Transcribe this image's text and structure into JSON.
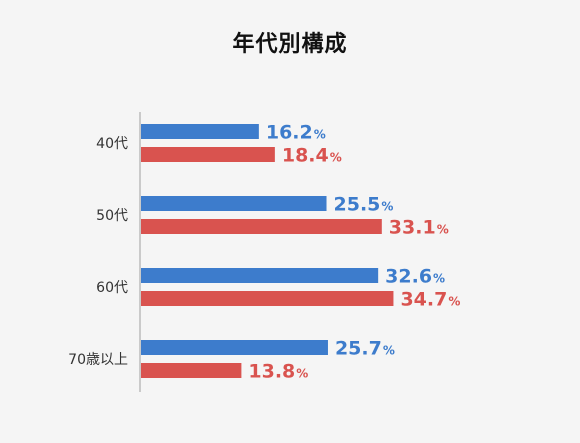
{
  "chart_data": {
    "type": "bar",
    "orientation": "horizontal",
    "title": "年代別構成",
    "categories": [
      "40代",
      "50代",
      "60代",
      "70歳以上"
    ],
    "series": [
      {
        "values": [
          16.2,
          25.5,
          32.6,
          25.7
        ],
        "color": "#3d7ccc"
      },
      {
        "values": [
          18.4,
          33.1,
          34.7,
          13.8
        ],
        "color": "#d9534f"
      }
    ],
    "value_suffix": "%",
    "xlim": [
      0,
      45
    ],
    "grid": false,
    "legend": "none"
  }
}
